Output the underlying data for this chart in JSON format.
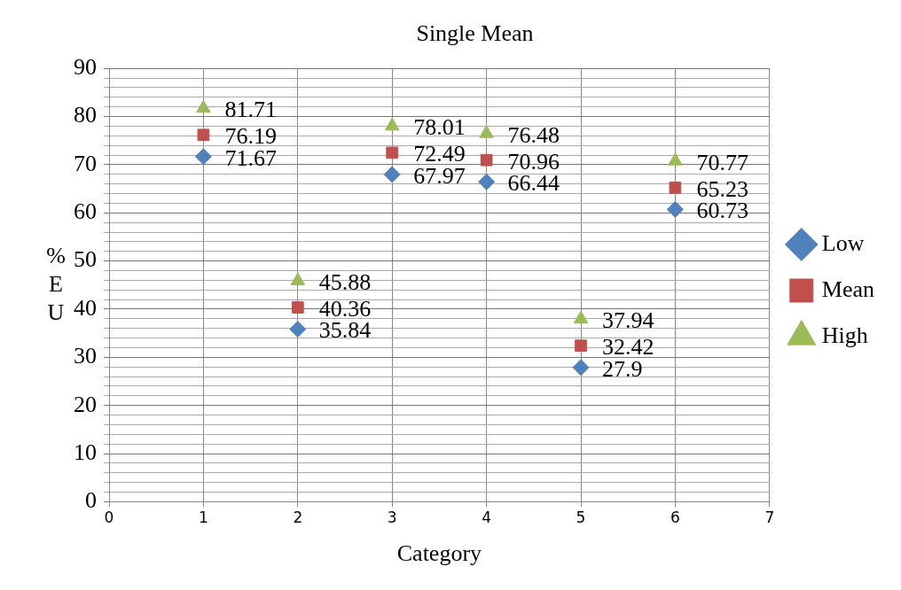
{
  "chart_data": {
    "type": "scatter",
    "title": "Single Mean",
    "xlabel": "Category",
    "ylabel": "%EU",
    "xlim": [
      0,
      7
    ],
    "xticks": [
      0,
      1,
      2,
      3,
      4,
      5,
      6,
      7
    ],
    "ylim": [
      0,
      90
    ],
    "yticks": [
      0,
      {
        "value": 2,
        "label": null
      },
      {
        "value": 4,
        "label": null
      },
      {
        "value": 6,
        "label": null
      },
      {
        "value": 8,
        "label": null
      },
      10,
      {
        "value": 12,
        "label": null
      },
      {
        "value": 14,
        "label": null
      },
      {
        "value": 16,
        "label": null
      },
      {
        "value": 18,
        "label": null
      },
      20,
      {
        "value": 22,
        "label": null
      },
      {
        "value": 24,
        "label": null
      },
      {
        "value": 26,
        "label": null
      },
      {
        "value": 28,
        "label": null
      },
      30,
      {
        "value": 32,
        "label": null
      },
      {
        "value": 34,
        "label": null
      },
      {
        "value": 36,
        "label": null
      },
      {
        "value": 38,
        "label": null
      },
      40,
      {
        "value": 42,
        "label": null
      },
      {
        "value": 44,
        "label": null
      },
      {
        "value": 46,
        "label": null
      },
      {
        "value": 48,
        "label": null
      },
      50,
      {
        "value": 52,
        "label": null
      },
      {
        "value": 54,
        "label": null
      },
      {
        "value": 56,
        "label": null
      },
      {
        "value": 58,
        "label": null
      },
      60,
      {
        "value": 62,
        "label": null
      },
      {
        "value": 64,
        "label": null
      },
      {
        "value": 66,
        "label": null
      },
      {
        "value": 68,
        "label": null
      },
      70,
      {
        "value": 72,
        "label": null
      },
      {
        "value": 74,
        "label": null
      },
      {
        "value": 76,
        "label": null
      },
      {
        "value": 78,
        "label": null
      },
      80,
      {
        "value": 82,
        "label": null
      },
      {
        "value": 84,
        "label": null
      },
      {
        "value": 86,
        "label": null
      },
      {
        "value": 88,
        "label": null
      },
      90
    ],
    "grid": true,
    "legend": "right",
    "data_labels": true,
    "x": [
      1,
      2,
      3,
      4,
      5,
      6
    ],
    "series": [
      {
        "name": "Low",
        "color": "#4f81bd",
        "marker": "diamond",
        "values": [
          71.67,
          35.84,
          67.97,
          66.44,
          27.9,
          60.73
        ]
      },
      {
        "name": "Mean",
        "color": "#c0504d",
        "marker": "square",
        "values": [
          76.19,
          40.36,
          72.49,
          70.96,
          32.42,
          65.23
        ]
      },
      {
        "name": "High",
        "color": "#9bbb59",
        "marker": "triangle",
        "values": [
          81.71,
          45.88,
          78.01,
          76.48,
          37.94,
          70.77
        ]
      }
    ]
  }
}
